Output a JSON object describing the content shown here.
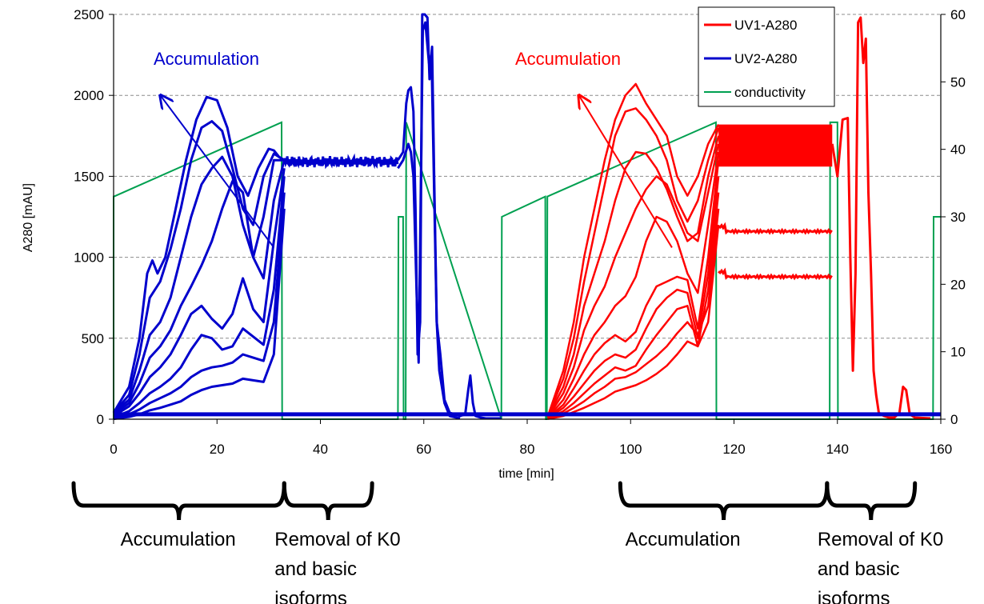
{
  "chart_data": {
    "type": "line",
    "xlabel": "time [min]",
    "ylabel": "A280 [mAU]",
    "xlim": [
      0,
      160
    ],
    "ylim": [
      0,
      2500
    ],
    "y2lim": [
      0,
      60
    ],
    "x_ticks": [
      "0",
      "20",
      "40",
      "60",
      "80",
      "100",
      "120",
      "140",
      "160"
    ],
    "y_ticks": [
      "0",
      "500",
      "1000",
      "1500",
      "2000",
      "2500"
    ],
    "y2_ticks": [
      "0",
      "10",
      "20",
      "30",
      "40",
      "50",
      "60"
    ],
    "grid": "horizontal dashed",
    "legend_position": "top-right",
    "legend": [
      {
        "name": "UV1-A280",
        "color": "#ff0000"
      },
      {
        "name": "UV2-A280",
        "color": "#0000cc"
      },
      {
        "name": "conductivity",
        "color": "#00a050"
      }
    ],
    "uv2_curves": [
      {
        "x": [
          0,
          3,
          5,
          6.5,
          7.5,
          8.5,
          10,
          12,
          14,
          16,
          18,
          20,
          22,
          24,
          26,
          28,
          30,
          31,
          32,
          33
        ],
        "y": [
          40,
          200,
          500,
          900,
          980,
          900,
          1000,
          1300,
          1600,
          1850,
          1990,
          1970,
          1800,
          1500,
          1380,
          1550,
          1670,
          1660,
          1620,
          1600
        ]
      },
      {
        "x": [
          0,
          3,
          5,
          7,
          9,
          11,
          13,
          15,
          17,
          19,
          21,
          23,
          25,
          27,
          29,
          31,
          33
        ],
        "y": [
          40,
          150,
          400,
          750,
          850,
          1050,
          1300,
          1600,
          1800,
          1840,
          1780,
          1550,
          1300,
          1200,
          1500,
          1640,
          1600
        ]
      },
      {
        "x": [
          0,
          3,
          5,
          7,
          9,
          11,
          13,
          15,
          17,
          19,
          21,
          23,
          25,
          27,
          29,
          31,
          33
        ],
        "y": [
          40,
          120,
          300,
          520,
          600,
          750,
          1000,
          1250,
          1450,
          1550,
          1620,
          1500,
          1200,
          1000,
          1250,
          1600,
          1600
        ]
      },
      {
        "x": [
          0,
          3,
          5,
          7,
          9,
          11,
          13,
          15,
          17,
          19,
          21,
          23,
          25,
          27,
          29,
          31,
          33
        ],
        "y": [
          30,
          100,
          220,
          380,
          450,
          550,
          700,
          820,
          950,
          1100,
          1300,
          1470,
          1400,
          1000,
          870,
          1350,
          1600
        ]
      },
      {
        "x": [
          0,
          3,
          5,
          7,
          9,
          11,
          13,
          15,
          17,
          19,
          21,
          23,
          25,
          27,
          29,
          31,
          33
        ],
        "y": [
          20,
          80,
          160,
          260,
          320,
          400,
          520,
          650,
          700,
          620,
          560,
          650,
          870,
          680,
          600,
          1100,
          1550
        ]
      },
      {
        "x": [
          0,
          3,
          5,
          7,
          9,
          11,
          13,
          15,
          17,
          19,
          21,
          23,
          25,
          27,
          29,
          31,
          33
        ],
        "y": [
          10,
          50,
          100,
          160,
          200,
          250,
          320,
          430,
          520,
          500,
          430,
          450,
          560,
          510,
          460,
          800,
          1500
        ]
      },
      {
        "x": [
          0,
          3,
          5,
          7,
          9,
          11,
          13,
          15,
          17,
          19,
          21,
          23,
          25,
          27,
          29,
          31,
          33
        ],
        "y": [
          5,
          30,
          60,
          100,
          130,
          160,
          200,
          260,
          300,
          320,
          330,
          350,
          400,
          380,
          360,
          600,
          1400
        ]
      },
      {
        "x": [
          0,
          3,
          5,
          7,
          9,
          11,
          13,
          15,
          17,
          19,
          21,
          23,
          25,
          27,
          29,
          31,
          33
        ],
        "y": [
          2,
          15,
          30,
          55,
          70,
          90,
          110,
          150,
          180,
          200,
          210,
          220,
          250,
          240,
          230,
          400,
          1300
        ]
      }
    ],
    "uv2_plateau": {
      "x": [
        33,
        55
      ],
      "y": 1590,
      "noise": 25
    },
    "uv2_tail": [
      {
        "x": [
          55,
          56,
          56.6,
          57,
          57.5,
          58,
          58.4,
          58.8,
          59.3,
          59.7,
          60.2,
          60.7,
          61.1,
          61.6,
          62,
          62.5,
          63.2,
          64,
          65,
          66,
          67,
          68,
          68.6,
          69,
          69.5,
          70,
          71,
          72,
          75
        ],
        "y": [
          1600,
          1650,
          1950,
          2030,
          2050,
          1900,
          1300,
          400,
          600,
          2500,
          2500,
          2480,
          2100,
          2300,
          1500,
          600,
          400,
          120,
          40,
          30,
          20,
          30,
          180,
          270,
          100,
          20,
          10,
          5,
          5
        ]
      },
      {
        "x": [
          55,
          56,
          57,
          57.5,
          58,
          58.5,
          59,
          59.8,
          60.3,
          61,
          61.5,
          62,
          62.5,
          63,
          64,
          65,
          67
        ],
        "y": [
          1550,
          1600,
          1700,
          1650,
          1500,
          900,
          350,
          2400,
          2450,
          2200,
          2250,
          1400,
          600,
          300,
          100,
          20,
          5
        ]
      }
    ],
    "uv1_curves": [
      {
        "x": [
          84,
          87,
          89,
          91,
          93,
          95,
          97,
          99,
          101,
          103,
          105,
          107,
          109,
          111,
          113,
          115,
          117
        ],
        "y": [
          20,
          300,
          600,
          1000,
          1300,
          1600,
          1850,
          2000,
          2070,
          1950,
          1850,
          1750,
          1500,
          1380,
          1500,
          1700,
          1820
        ]
      },
      {
        "x": [
          84,
          87,
          89,
          91,
          93,
          95,
          97,
          99,
          101,
          103,
          105,
          107,
          109,
          111,
          113,
          115,
          117
        ],
        "y": [
          20,
          250,
          500,
          850,
          1150,
          1450,
          1750,
          1900,
          1920,
          1850,
          1750,
          1600,
          1350,
          1220,
          1350,
          1600,
          1800
        ]
      },
      {
        "x": [
          84,
          87,
          89,
          91,
          93,
          95,
          97,
          99,
          101,
          103,
          105,
          107,
          109,
          111,
          113,
          115,
          117
        ],
        "y": [
          15,
          200,
          400,
          700,
          900,
          1100,
          1350,
          1550,
          1650,
          1640,
          1550,
          1420,
          1250,
          1100,
          1150,
          1500,
          1750
        ]
      },
      {
        "x": [
          84,
          87,
          89,
          91,
          93,
          95,
          97,
          99,
          101,
          103,
          105,
          107,
          109,
          111,
          113,
          115,
          117
        ],
        "y": [
          12,
          160,
          320,
          550,
          700,
          820,
          1000,
          1150,
          1300,
          1420,
          1500,
          1450,
          1300,
          1150,
          1100,
          1400,
          1700
        ]
      },
      {
        "x": [
          84,
          87,
          89,
          91,
          93,
          95,
          97,
          99,
          101,
          103,
          105,
          107,
          109,
          111,
          113,
          115,
          117
        ],
        "y": [
          10,
          120,
          250,
          400,
          520,
          600,
          700,
          760,
          880,
          1100,
          1250,
          1220,
          1100,
          900,
          780,
          1200,
          1650
        ]
      },
      {
        "x": [
          84,
          87,
          89,
          91,
          93,
          95,
          97,
          99,
          101,
          103,
          105,
          107,
          109,
          111,
          113,
          115,
          117
        ],
        "y": [
          8,
          90,
          190,
          300,
          400,
          470,
          520,
          480,
          540,
          700,
          820,
          850,
          880,
          860,
          560,
          1000,
          1600
        ]
      },
      {
        "x": [
          84,
          87,
          89,
          91,
          93,
          95,
          97,
          99,
          101,
          103,
          105,
          107,
          109,
          111,
          113,
          115,
          117
        ],
        "y": [
          6,
          70,
          140,
          220,
          300,
          360,
          400,
          380,
          430,
          560,
          680,
          750,
          800,
          780,
          500,
          900,
          1500
        ]
      },
      {
        "x": [
          84,
          87,
          89,
          91,
          93,
          95,
          97,
          99,
          101,
          103,
          105,
          107,
          109,
          111,
          113,
          115,
          117
        ],
        "y": [
          4,
          50,
          100,
          160,
          220,
          270,
          320,
          300,
          330,
          430,
          520,
          600,
          680,
          700,
          450,
          800,
          1400
        ]
      },
      {
        "x": [
          84,
          87,
          89,
          91,
          93,
          95,
          97,
          99,
          101,
          103,
          105,
          107,
          109,
          111,
          113,
          115,
          117
        ],
        "y": [
          3,
          35,
          70,
          110,
          160,
          200,
          250,
          260,
          290,
          340,
          390,
          450,
          530,
          600,
          520,
          700,
          1300
        ]
      },
      {
        "x": [
          84,
          87,
          89,
          91,
          93,
          95,
          97,
          99,
          101,
          103,
          105,
          107,
          109,
          111,
          113,
          115,
          117
        ],
        "y": [
          2,
          20,
          45,
          70,
          100,
          130,
          170,
          190,
          210,
          240,
          280,
          330,
          400,
          480,
          450,
          600,
          1200
        ]
      }
    ],
    "uv1_band": {
      "x": [
        117,
        139
      ],
      "y_low": 1560,
      "y_high": 1820
    },
    "uv1_levels": [
      {
        "x": [
          117,
          139
        ],
        "y": 1160
      },
      {
        "x": [
          117,
          139
        ],
        "y": 880
      }
    ],
    "uv1_tail": {
      "x": [
        139,
        140,
        141,
        142,
        142.5,
        143,
        143.5,
        144,
        144.5,
        145,
        145.5,
        146,
        146.5,
        147,
        147.5,
        148,
        149,
        150,
        151,
        152,
        152.7,
        153.3,
        154,
        155,
        158
      ],
      "y": [
        1700,
        1500,
        1850,
        1860,
        1000,
        300,
        900,
        2450,
        2480,
        2200,
        2350,
        1400,
        900,
        300,
        150,
        40,
        20,
        10,
        10,
        40,
        200,
        180,
        30,
        10,
        5
      ]
    },
    "uv_baseline": {
      "x": [
        0,
        160
      ],
      "y": 30
    },
    "conductivity": {
      "x": [
        0,
        0,
        0.05,
        32.5,
        32.6,
        55,
        55.1,
        56,
        56.1,
        56.5,
        56.6,
        75,
        75.1,
        83.5,
        83.6,
        83.8,
        83.9,
        116.5,
        116.6,
        138.5,
        138.6,
        140,
        140.1,
        158.5,
        158.6,
        160
      ],
      "y": [
        0,
        33,
        33,
        44,
        0,
        0,
        30,
        30,
        0,
        0,
        44,
        0,
        30,
        33,
        0,
        0,
        33,
        44,
        0,
        0,
        44,
        44,
        0,
        0,
        30,
        30
      ]
    },
    "annotations": [
      {
        "text": "Accumulation",
        "color": "#0000cc",
        "arrow_from": [
          31,
          1060
        ],
        "arrow_to": [
          1,
          2000
        ]
      },
      {
        "text": "Accumulation",
        "color": "#ff0000",
        "arrow_from": [
          108,
          1060
        ],
        "arrow_to": [
          90,
          2000
        ]
      }
    ],
    "phases": [
      {
        "lines": [
          "Accumulation"
        ],
        "x_start": 0,
        "x_end": 33
      },
      {
        "lines": [
          "Removal of K0",
          "and basic",
          "isoforms"
        ],
        "x_start": 33,
        "x_end": 50
      },
      {
        "lines": [
          "Accumulation"
        ],
        "x_start": 98,
        "x_end": 138
      },
      {
        "lines": [
          "Removal of K0",
          "and basic",
          "isoforms"
        ],
        "x_start": 138,
        "x_end": 155
      }
    ]
  }
}
